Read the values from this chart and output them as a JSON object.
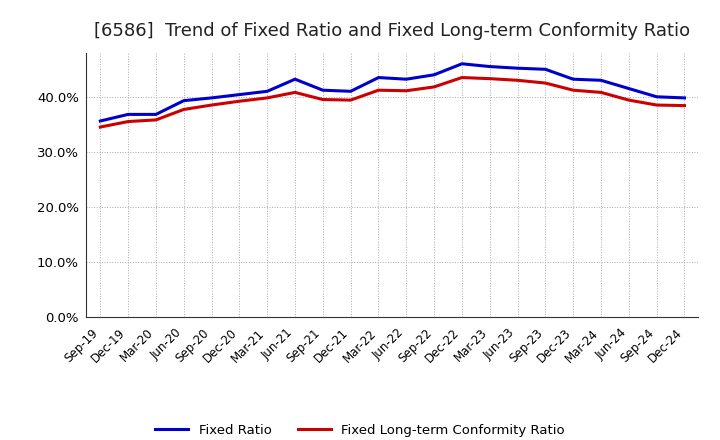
{
  "title": "[6586]  Trend of Fixed Ratio and Fixed Long-term Conformity Ratio",
  "x_labels": [
    "Sep-19",
    "Dec-19",
    "Mar-20",
    "Jun-20",
    "Sep-20",
    "Dec-20",
    "Mar-21",
    "Jun-21",
    "Sep-21",
    "Dec-21",
    "Mar-22",
    "Jun-22",
    "Sep-22",
    "Dec-22",
    "Mar-23",
    "Jun-23",
    "Sep-23",
    "Dec-23",
    "Mar-24",
    "Jun-24",
    "Sep-24",
    "Dec-24"
  ],
  "fixed_ratio": [
    0.356,
    0.368,
    0.368,
    0.393,
    0.398,
    0.404,
    0.41,
    0.432,
    0.412,
    0.41,
    0.435,
    0.432,
    0.44,
    0.46,
    0.455,
    0.452,
    0.45,
    0.432,
    0.43,
    0.415,
    0.4,
    0.398
  ],
  "fixed_lt_ratio": [
    0.345,
    0.355,
    0.358,
    0.377,
    0.385,
    0.392,
    0.398,
    0.408,
    0.395,
    0.394,
    0.412,
    0.411,
    0.418,
    0.435,
    0.433,
    0.43,
    0.425,
    0.412,
    0.408,
    0.394,
    0.385,
    0.384
  ],
  "fixed_ratio_color": "#0000cc",
  "fixed_lt_ratio_color": "#cc0000",
  "bg_color": "#ffffff",
  "plot_bg_color": "#ffffff",
  "grid_color": "#aaaaaa",
  "ylim": [
    0.0,
    0.48
  ],
  "yticks": [
    0.0,
    0.1,
    0.2,
    0.3,
    0.4
  ],
  "title_fontsize": 13,
  "legend_fixed_ratio": "Fixed Ratio",
  "legend_fixed_lt_ratio": "Fixed Long-term Conformity Ratio",
  "line_width": 2.2
}
